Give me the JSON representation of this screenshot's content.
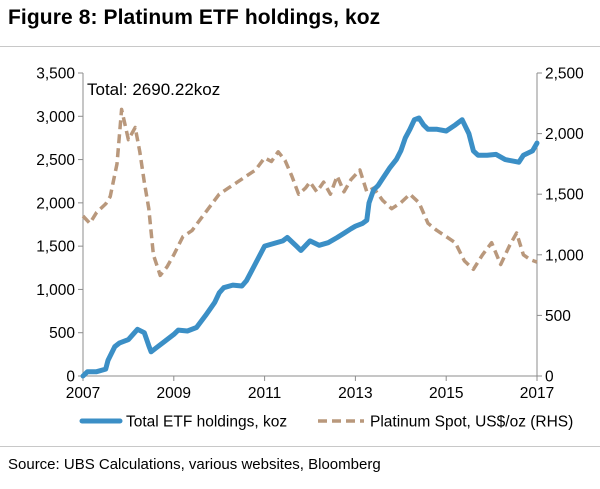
{
  "title": "Figure 8: Platinum ETF holdings, koz",
  "source": "Source:  UBS Calculations, various websites, Bloomberg",
  "chart_data": {
    "type": "line",
    "annotation": "Total: 2690.22koz",
    "xlim": [
      2007,
      2017
    ],
    "x_ticks": [
      2007,
      2009,
      2011,
      2013,
      2015,
      2017
    ],
    "x_tick_labels": [
      "2007",
      "2009",
      "2011",
      "2013",
      "2015",
      "2017"
    ],
    "ylim_left": [
      0,
      3500
    ],
    "y_ticks_left": [
      0,
      500,
      1000,
      1500,
      2000,
      2500,
      3000,
      3500
    ],
    "y_tick_labels_left": [
      "0",
      "500",
      "1,000",
      "1,500",
      "2,000",
      "2,500",
      "3,000",
      "3,500"
    ],
    "ylim_right": [
      0,
      2500
    ],
    "y_ticks_right": [
      0,
      500,
      1000,
      1500,
      2000,
      2500
    ],
    "y_tick_labels_right": [
      "0",
      "500",
      "1,000",
      "1,500",
      "2,000",
      "2,500"
    ],
    "grid": false,
    "legend_position": "bottom",
    "series": [
      {
        "name": "Total ETF holdings, koz",
        "axis": "left",
        "style": "solid",
        "color": "#3b8fc6",
        "x": [
          2007.0,
          2007.1,
          2007.3,
          2007.5,
          2007.55,
          2007.7,
          2007.8,
          2008.0,
          2008.2,
          2008.35,
          2008.45,
          2008.5,
          2008.6,
          2008.8,
          2009.0,
          2009.1,
          2009.3,
          2009.5,
          2009.7,
          2009.9,
          2010.0,
          2010.1,
          2010.3,
          2010.5,
          2010.6,
          2010.8,
          2011.0,
          2011.2,
          2011.4,
          2011.5,
          2011.7,
          2011.8,
          2012.0,
          2012.2,
          2012.4,
          2012.6,
          2012.75,
          2012.9,
          2013.0,
          2013.15,
          2013.25,
          2013.3,
          2013.4,
          2013.5,
          2013.6,
          2013.75,
          2013.9,
          2014.0,
          2014.1,
          2014.2,
          2014.3,
          2014.4,
          2014.5,
          2014.6,
          2014.8,
          2015.0,
          2015.2,
          2015.35,
          2015.5,
          2015.6,
          2015.7,
          2015.9,
          2016.1,
          2016.3,
          2016.5,
          2016.6,
          2016.7,
          2016.9,
          2017.0
        ],
        "y": [
          0,
          50,
          50,
          80,
          180,
          340,
          380,
          420,
          540,
          500,
          350,
          280,
          320,
          400,
          480,
          530,
          520,
          560,
          700,
          850,
          960,
          1020,
          1050,
          1040,
          1100,
          1300,
          1500,
          1530,
          1560,
          1600,
          1500,
          1450,
          1560,
          1510,
          1540,
          1600,
          1650,
          1700,
          1730,
          1760,
          1800,
          2000,
          2150,
          2200,
          2280,
          2400,
          2500,
          2600,
          2750,
          2850,
          2960,
          2980,
          2900,
          2850,
          2850,
          2830,
          2900,
          2960,
          2800,
          2600,
          2550,
          2550,
          2560,
          2500,
          2480,
          2470,
          2550,
          2600,
          2690
        ]
      },
      {
        "name": "Platinum Spot, US$/oz (RHS)",
        "axis": "right",
        "style": "dashed",
        "color": "#b9987c",
        "x": [
          2007.0,
          2007.15,
          2007.3,
          2007.5,
          2007.6,
          2007.75,
          2007.85,
          2008.0,
          2008.15,
          2008.25,
          2008.35,
          2008.45,
          2008.55,
          2008.7,
          2008.85,
          2009.0,
          2009.2,
          2009.4,
          2009.6,
          2009.8,
          2010.0,
          2010.2,
          2010.4,
          2010.6,
          2010.8,
          2011.0,
          2011.15,
          2011.3,
          2011.45,
          2011.6,
          2011.75,
          2011.9,
          2012.0,
          2012.15,
          2012.3,
          2012.45,
          2012.6,
          2012.75,
          2012.9,
          2013.1,
          2013.25,
          2013.4,
          2013.6,
          2013.8,
          2014.0,
          2014.2,
          2014.4,
          2014.6,
          2014.8,
          2015.0,
          2015.2,
          2015.4,
          2015.6,
          2015.8,
          2016.0,
          2016.2,
          2016.4,
          2016.55,
          2016.7,
          2016.85,
          2017.0
        ],
        "y": [
          1320,
          1260,
          1350,
          1420,
          1480,
          1750,
          2200,
          1950,
          2050,
          1850,
          1600,
          1380,
          1000,
          830,
          900,
          1000,
          1150,
          1200,
          1300,
          1400,
          1500,
          1550,
          1600,
          1650,
          1700,
          1800,
          1770,
          1850,
          1780,
          1650,
          1500,
          1550,
          1600,
          1520,
          1600,
          1500,
          1650,
          1520,
          1620,
          1700,
          1520,
          1550,
          1450,
          1380,
          1430,
          1500,
          1430,
          1260,
          1200,
          1150,
          1100,
          950,
          880,
          1000,
          1100,
          920,
          1080,
          1180,
          1000,
          960,
          940
        ]
      }
    ]
  }
}
